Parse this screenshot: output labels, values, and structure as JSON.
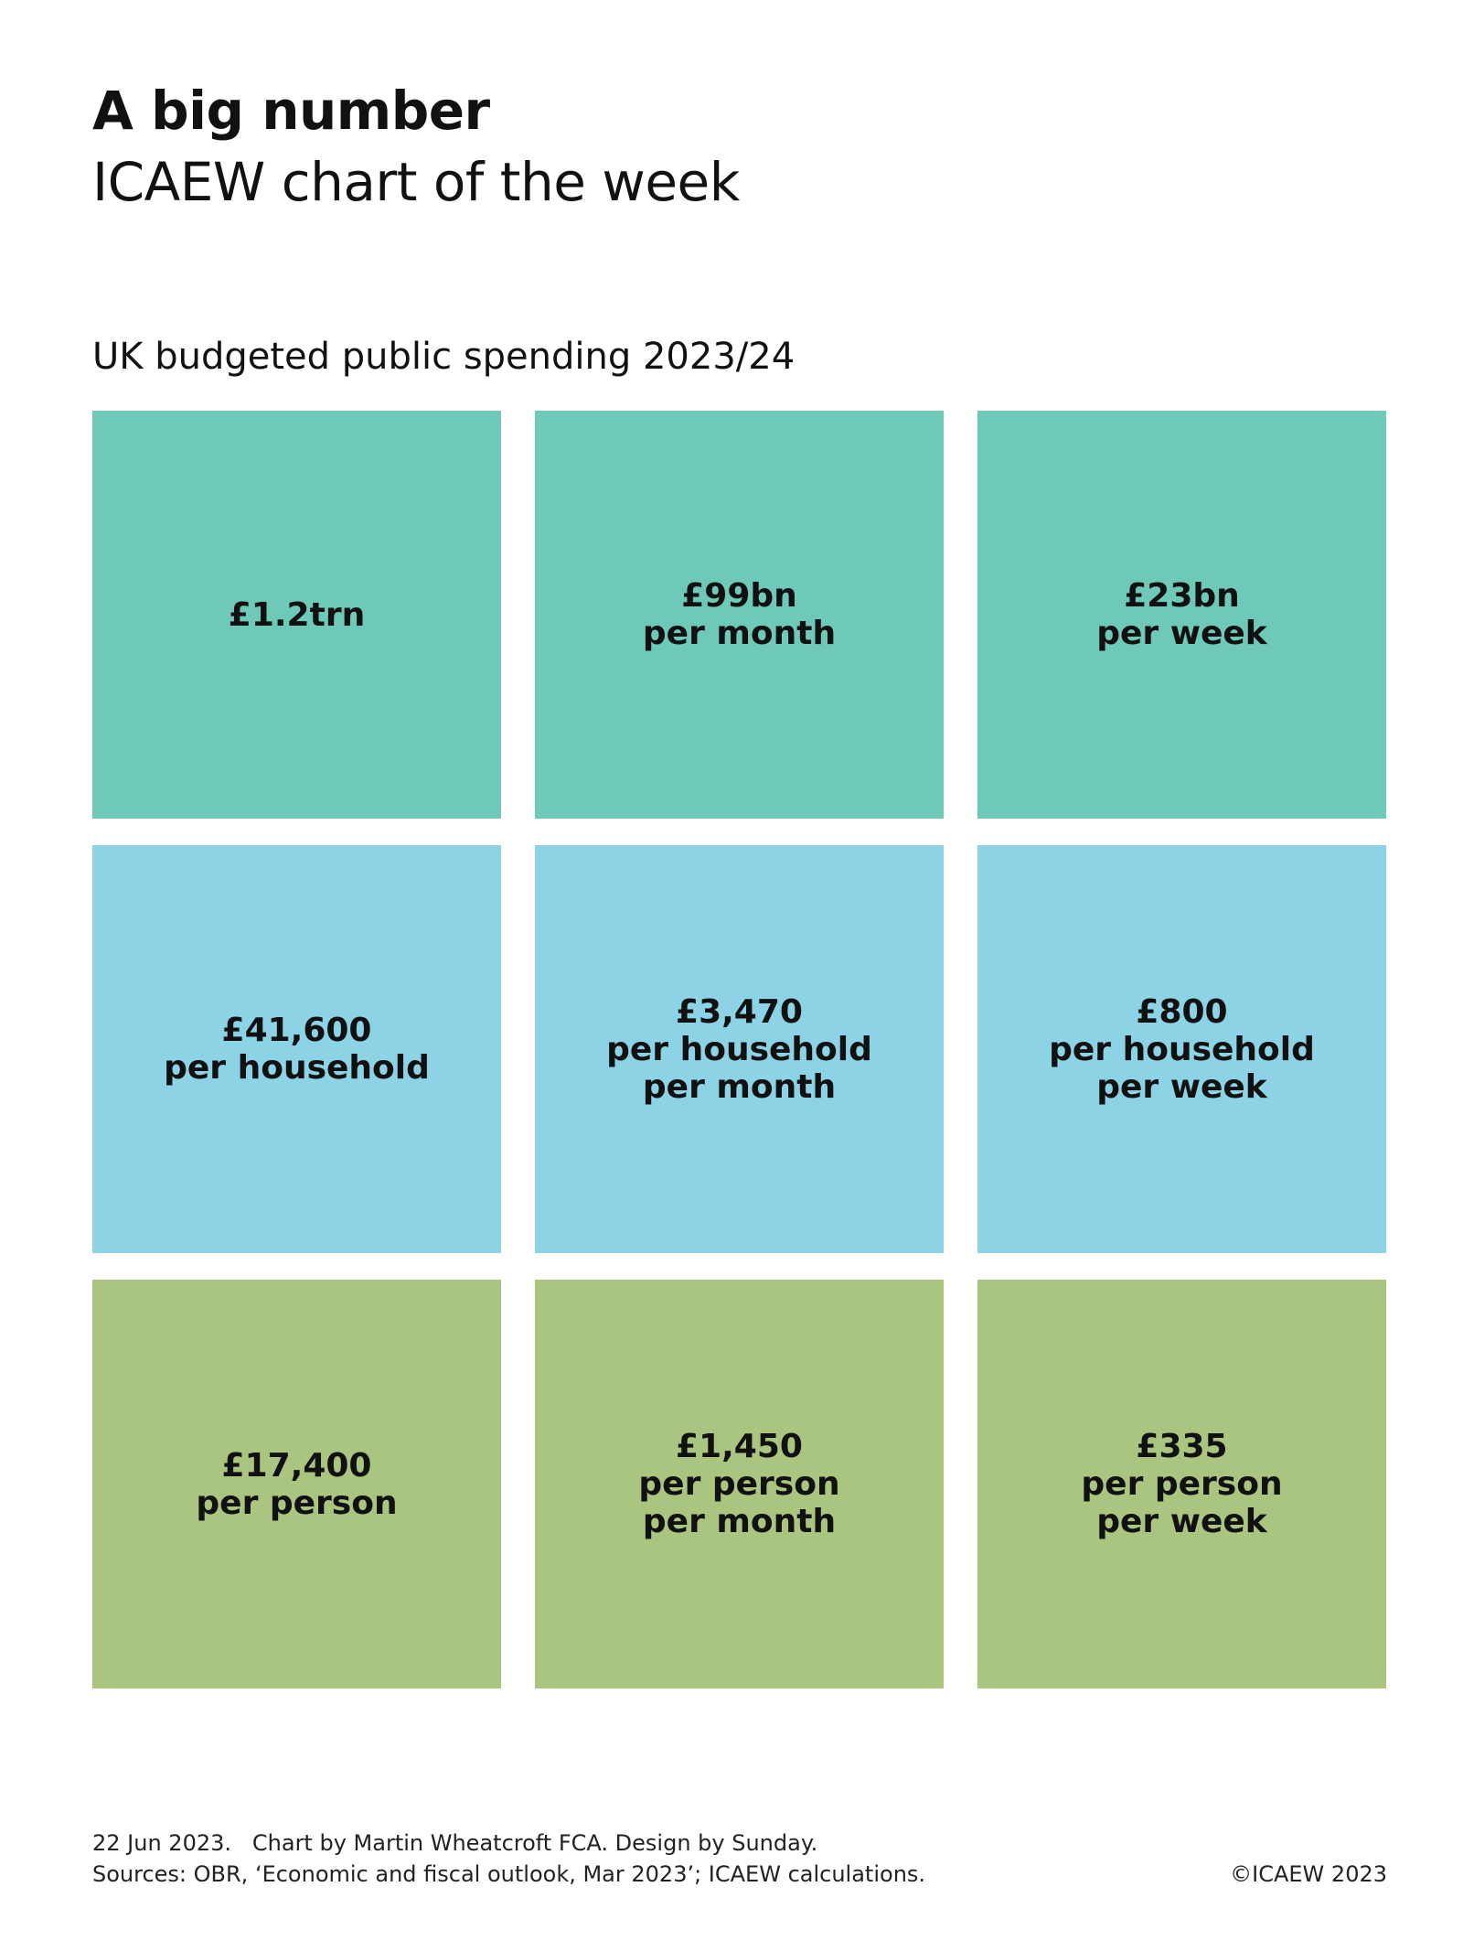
{
  "header": {
    "title": "A big number",
    "subtitle": "ICAEW chart of the week"
  },
  "chart_data": {
    "type": "table",
    "title": "UK budgeted public spending 2023/24",
    "row_colors": [
      "#6fc9b9",
      "#8dd3e6",
      "#aac580"
    ],
    "tiles": [
      {
        "row": "total",
        "lines": [
          "£1.2trn"
        ]
      },
      {
        "row": "total",
        "lines": [
          "£99bn",
          "per month"
        ]
      },
      {
        "row": "total",
        "lines": [
          "£23bn",
          "per week"
        ]
      },
      {
        "row": "household",
        "lines": [
          "£41,600",
          "per household"
        ]
      },
      {
        "row": "household",
        "lines": [
          "£3,470",
          "per household",
          "per month"
        ]
      },
      {
        "row": "household",
        "lines": [
          "£800",
          "per household",
          "per week"
        ]
      },
      {
        "row": "person",
        "lines": [
          "£17,400",
          "per person"
        ]
      },
      {
        "row": "person",
        "lines": [
          "£1,450",
          "per person",
          "per month"
        ]
      },
      {
        "row": "person",
        "lines": [
          "£335",
          "per person",
          "per week"
        ]
      }
    ]
  },
  "footer": {
    "line1": "22 Jun 2023.   Chart by Martin Wheatcroft FCA. Design by Sunday.",
    "line2": "Sources: OBR, ‘Economic and fiscal outlook, Mar 2023’; ICAEW calculations.",
    "copyright": "©ICAEW 2023"
  }
}
